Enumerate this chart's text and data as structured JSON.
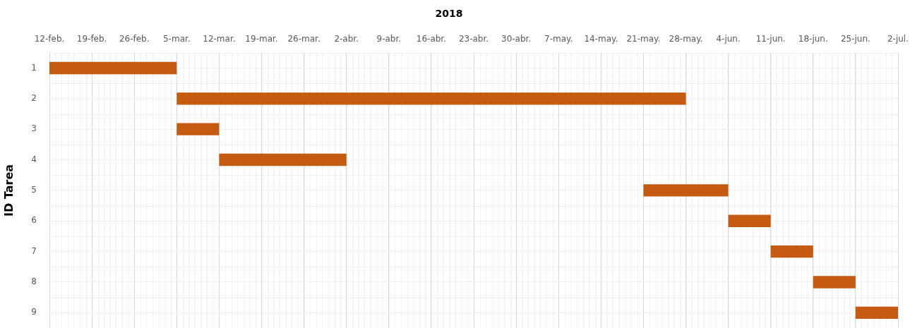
{
  "chart_data": {
    "type": "bar",
    "orientation": "horizontal",
    "title": "2018",
    "ylabel": "ID Tarea",
    "categories": [
      "1",
      "2",
      "3",
      "4",
      "5",
      "6",
      "7",
      "8",
      "9"
    ],
    "base": [
      17574,
      17595,
      17595,
      17602,
      17672,
      17686,
      17693,
      17700,
      17707
    ],
    "values": [
      21,
      84,
      7,
      21,
      14,
      7,
      7,
      7,
      7
    ],
    "color": "#c55a11",
    "xlim": [
      "2018-02-12",
      "2018-07-02"
    ],
    "xticks": [
      {
        "value": "2018-02-12",
        "label": "12-feb."
      },
      {
        "value": "2018-02-19",
        "label": "19-feb."
      },
      {
        "value": "2018-02-26",
        "label": "26-feb."
      },
      {
        "value": "2018-03-05",
        "label": "5-mar."
      },
      {
        "value": "2018-03-12",
        "label": "12-mar."
      },
      {
        "value": "2018-03-19",
        "label": "19-mar."
      },
      {
        "value": "2018-03-26",
        "label": "26-mar."
      },
      {
        "value": "2018-04-02",
        "label": "2-abr."
      },
      {
        "value": "2018-04-09",
        "label": "9-abr."
      },
      {
        "value": "2018-04-16",
        "label": "16-abr."
      },
      {
        "value": "2018-04-23",
        "label": "23-abr."
      },
      {
        "value": "2018-04-30",
        "label": "30-abr."
      },
      {
        "value": "2018-05-07",
        "label": "7-may."
      },
      {
        "value": "2018-05-14",
        "label": "14-may."
      },
      {
        "value": "2018-05-21",
        "label": "21-may."
      },
      {
        "value": "2018-05-28",
        "label": "28-may."
      },
      {
        "value": "2018-06-04",
        "label": "4-jun."
      },
      {
        "value": "2018-06-11",
        "label": "11-jun."
      },
      {
        "value": "2018-06-18",
        "label": "18-jun."
      },
      {
        "value": "2018-06-25",
        "label": "25-jun."
      },
      {
        "value": "2018-07-02",
        "label": "2-jul."
      }
    ],
    "grid": true
  }
}
